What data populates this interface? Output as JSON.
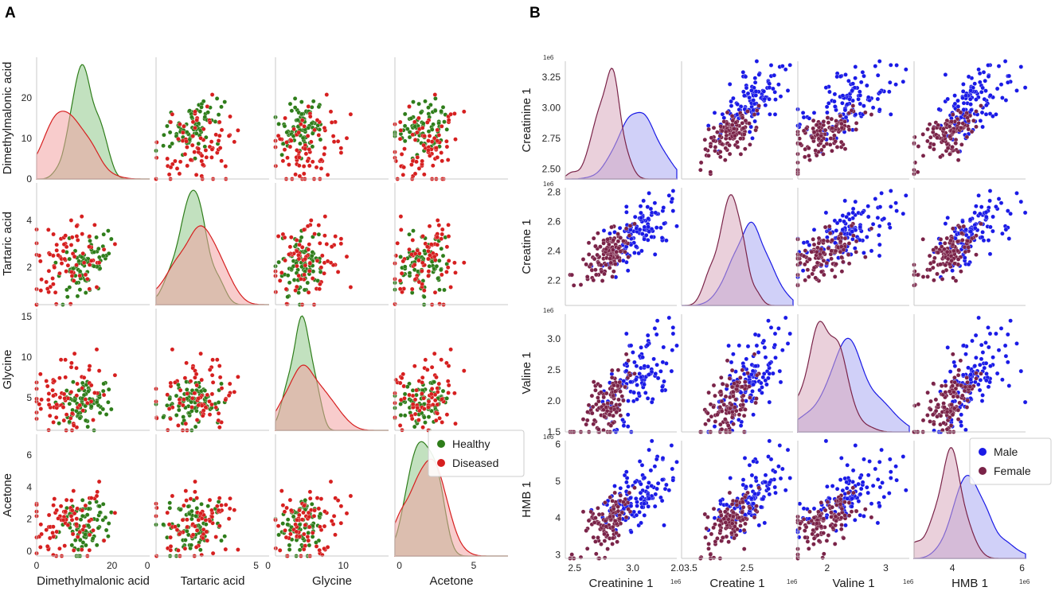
{
  "panels": [
    {
      "letter": "A",
      "variables": [
        "Dimethylmalonic acid",
        "Tartaric acid",
        "Glycine",
        "Acetone"
      ],
      "ranges": [
        [
          0,
          30
        ],
        [
          0.4,
          5.6
        ],
        [
          1,
          16
        ],
        [
          -0.3,
          7.3
        ]
      ],
      "ticks": [
        [
          {
            "v": 0,
            "t": "0"
          },
          {
            "v": 10,
            "t": "10"
          },
          {
            "v": 20,
            "t": "20"
          }
        ],
        [
          {
            "v": 2,
            "t": "2"
          },
          {
            "v": 4,
            "t": "4"
          }
        ],
        [
          {
            "v": 5,
            "t": "5"
          },
          {
            "v": 10,
            "t": "10"
          },
          {
            "v": 15,
            "t": "15"
          }
        ],
        [
          {
            "v": 0,
            "t": "0"
          },
          {
            "v": 2,
            "t": "2"
          },
          {
            "v": 4,
            "t": "4"
          },
          {
            "v": 6,
            "t": "6"
          }
        ]
      ],
      "xticks": [
        [
          {
            "v": 0,
            "t": "0"
          },
          {
            "v": 20,
            "t": "20"
          }
        ],
        [
          {
            "v": 0,
            "t": "0"
          },
          {
            "v": 5,
            "t": "5"
          }
        ],
        [
          {
            "v": 0,
            "t": "0"
          },
          {
            "v": 10,
            "t": "10"
          }
        ],
        [
          {
            "v": 0,
            "t": "0"
          },
          {
            "v": 5,
            "t": "5"
          }
        ]
      ],
      "exponent": "",
      "legend": [
        {
          "label": "Healthy",
          "color": "#2e7d1a",
          "fill": "#8fc98a"
        },
        {
          "label": "Diseased",
          "color": "#d61f1f",
          "fill": "#f2a3a3"
        }
      ],
      "chart_data": {
        "type": "scatter",
        "title": "",
        "series": [
          {
            "name": "Healthy",
            "n": 80,
            "means": [
              13,
              2.1,
              4.4,
              1.6
            ],
            "sds": [
              4,
              0.8,
              1.5,
              0.9
            ],
            "corr": 0.35
          },
          {
            "name": "Diseased",
            "n": 80,
            "means": [
              8,
              2.3,
              5.2,
              1.7
            ],
            "sds": [
              5,
              1.1,
              2,
              1.2
            ],
            "corr": 0.35
          }
        ]
      }
    },
    {
      "letter": "B",
      "variables": [
        "Creatinine 1",
        "Creatine 1",
        "Valine 1",
        "HMB 1"
      ],
      "ranges": [
        [
          2.42,
          3.38
        ],
        [
          2.03,
          2.83
        ],
        [
          1.5,
          3.4
        ],
        [
          2.9,
          6.1
        ]
      ],
      "ticks": [
        [
          {
            "v": 2.5,
            "t": "2.50"
          },
          {
            "v": 2.75,
            "t": "2.75"
          },
          {
            "v": 3.0,
            "t": "3.00"
          },
          {
            "v": 3.25,
            "t": "3.25"
          }
        ],
        [
          {
            "v": 2.2,
            "t": "2.2"
          },
          {
            "v": 2.4,
            "t": "2.4"
          },
          {
            "v": 2.6,
            "t": "2.6"
          },
          {
            "v": 2.8,
            "t": "2.8"
          }
        ],
        [
          {
            "v": 1.5,
            "t": "1.5"
          },
          {
            "v": 2.0,
            "t": "2.0"
          },
          {
            "v": 2.5,
            "t": "2.5"
          },
          {
            "v": 3.0,
            "t": "3.0"
          }
        ],
        [
          {
            "v": 3,
            "t": "3"
          },
          {
            "v": 4,
            "t": "4"
          },
          {
            "v": 5,
            "t": "5"
          },
          {
            "v": 6,
            "t": "6"
          }
        ]
      ],
      "xticks": [
        [
          {
            "v": 2.5,
            "t": "2.5"
          },
          {
            "v": 3.0,
            "t": "3.0"
          },
          {
            "v": 3.5,
            "t": "3.5"
          }
        ],
        [
          {
            "v": 2.0,
            "t": "2.0"
          },
          {
            "v": 2.5,
            "t": "2.5"
          }
        ],
        [
          {
            "v": 2,
            "t": "2"
          },
          {
            "v": 3,
            "t": "3"
          }
        ],
        [
          {
            "v": 4,
            "t": "4"
          },
          {
            "v": 6,
            "t": "6"
          }
        ]
      ],
      "exponent": "1e6",
      "legend": [
        {
          "label": "Male",
          "color": "#1a1ae6",
          "fill": "#a9a9f2"
        },
        {
          "label": "Female",
          "color": "#7a2348",
          "fill": "#d9a9bd"
        }
      ],
      "chart_data": {
        "type": "scatter",
        "title": "",
        "series": [
          {
            "name": "Male",
            "n": 120,
            "means": [
              3.05,
              2.53,
              2.35,
              4.6
            ],
            "sds": [
              0.15,
              0.12,
              0.4,
              0.55
            ],
            "corr": 0.8
          },
          {
            "name": "Female",
            "n": 120,
            "means": [
              2.78,
              2.37,
              1.95,
              3.85
            ],
            "sds": [
              0.12,
              0.1,
              0.3,
              0.45
            ],
            "corr": 0.8
          }
        ]
      }
    }
  ]
}
